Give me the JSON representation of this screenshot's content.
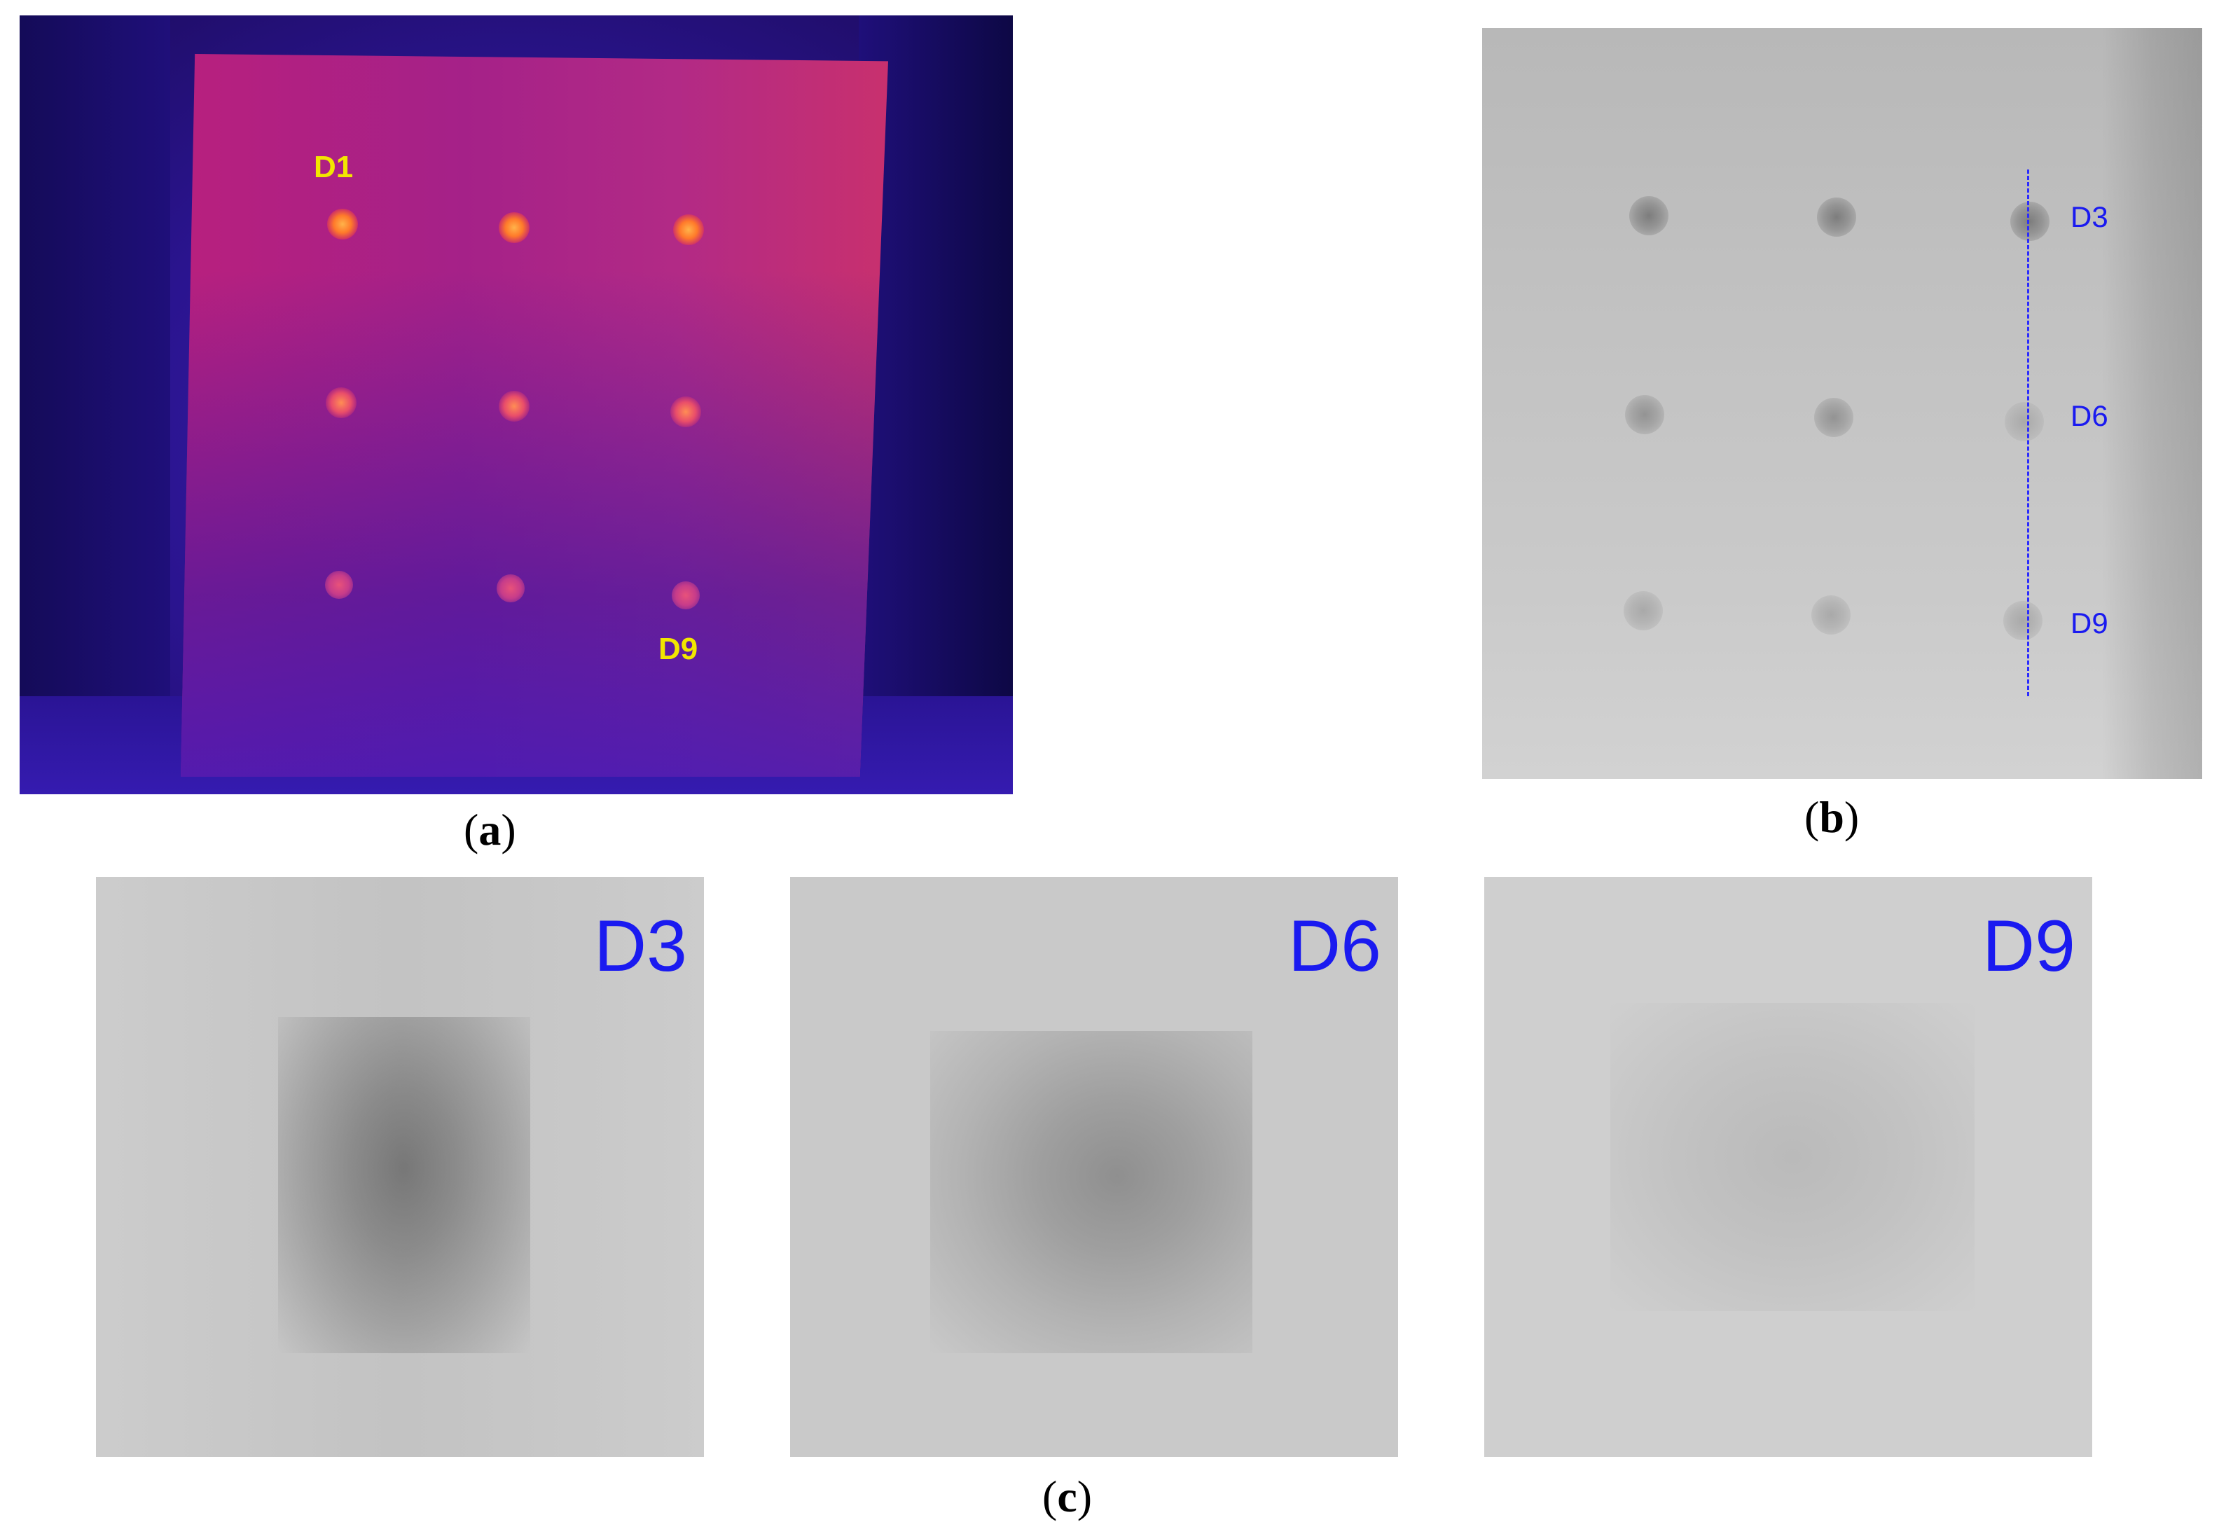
{
  "panel_a": {
    "labels": {
      "first": "D1",
      "last": "D9"
    },
    "caption": {
      "open": "(",
      "letter": "a",
      "close": ")"
    }
  },
  "panel_b": {
    "labels": {
      "top": "D3",
      "middle": "D6",
      "bottom": "D9"
    },
    "caption": {
      "open": "(",
      "letter": "b",
      "close": ")"
    }
  },
  "panel_c": {
    "labels": {
      "left": "D3",
      "center": "D6",
      "right": "D9"
    },
    "caption": {
      "open": "(",
      "letter": "c",
      "close": ")"
    }
  },
  "colors": {
    "thermal_label": "#f2e600",
    "annotation_blue": "#1a1af0",
    "thermal_background": "#2a148f",
    "plate": "#b8207e"
  }
}
